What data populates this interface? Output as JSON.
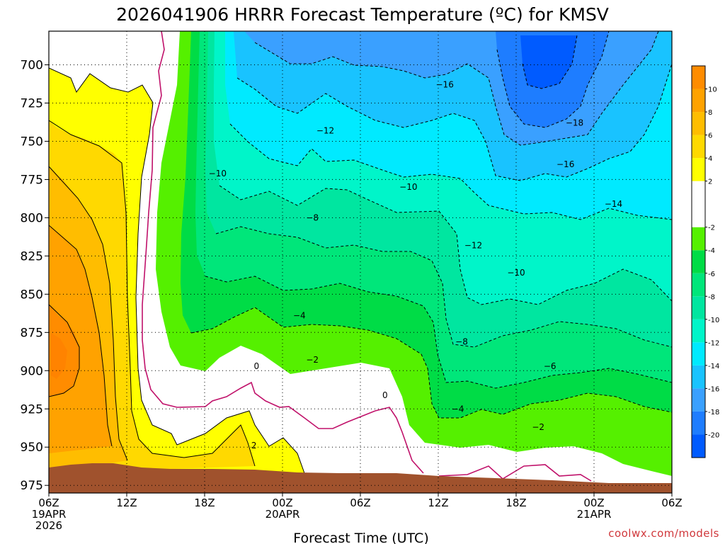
{
  "chart_data": {
    "type": "heatmap",
    "title": "2026041906 HRRR Forecast Temperature (ºC) for KMSV",
    "xlabel": "Forecast Time (UTC)",
    "credit": "coolwx.com/models",
    "x_ticks": [
      {
        "hour": 0,
        "lines": [
          "06Z",
          "19APR",
          "2026"
        ]
      },
      {
        "hour": 6,
        "lines": [
          "12Z"
        ]
      },
      {
        "hour": 12,
        "lines": [
          "18Z"
        ]
      },
      {
        "hour": 18,
        "lines": [
          "00Z",
          "20APR"
        ]
      },
      {
        "hour": 24,
        "lines": [
          "06Z"
        ]
      },
      {
        "hour": 30,
        "lines": [
          "12Z"
        ]
      },
      {
        "hour": 36,
        "lines": [
          "18Z"
        ]
      },
      {
        "hour": 42,
        "lines": [
          "00Z",
          "21APR"
        ]
      },
      {
        "hour": 48,
        "lines": [
          "06Z"
        ]
      }
    ],
    "xlim": [
      0,
      48
    ],
    "y_ticks": [
      "700",
      "725",
      "750",
      "775",
      "800",
      "825",
      "850",
      "875",
      "900",
      "925",
      "950",
      "975"
    ],
    "ylim": [
      980,
      678
    ],
    "grid": true,
    "colorbar": {
      "levels": [
        -22,
        -20,
        -18,
        -16,
        -14,
        -12,
        -10,
        -8,
        -6,
        -4,
        -2,
        2,
        4,
        6,
        8,
        10,
        12
      ],
      "tick_labels": [
        "-20",
        "-18",
        "-16",
        "-14",
        "-12",
        "-10",
        "-8",
        "-6",
        "-4",
        "-2",
        "2",
        "4",
        "6",
        "8",
        "10"
      ],
      "colors": [
        "#005bff",
        "#1e7dff",
        "#3aa0ff",
        "#19c3ff",
        "#00eaff",
        "#00f5c9",
        "#00e6a0",
        "#00e67a",
        "#00dc46",
        "#55f000",
        "#ffffff",
        "#ffff00",
        "#ffd900",
        "#ffbd00",
        "#ffa200",
        "#ff8c00"
      ]
    },
    "contour_labels": [
      {
        "hour": 30.5,
        "p": 713,
        "text": "−16"
      },
      {
        "hour": 40.5,
        "p": 738,
        "text": "−18"
      },
      {
        "hour": 21.3,
        "p": 743,
        "text": "−12"
      },
      {
        "hour": 39.8,
        "p": 765,
        "text": "−16"
      },
      {
        "hour": 13.0,
        "p": 771,
        "text": "−10"
      },
      {
        "hour": 27.7,
        "p": 780,
        "text": "−10"
      },
      {
        "hour": 43.5,
        "p": 791,
        "text": "−14"
      },
      {
        "hour": 20.3,
        "p": 800,
        "text": "−8"
      },
      {
        "hour": 32.7,
        "p": 818,
        "text": "−12"
      },
      {
        "hour": 36.0,
        "p": 836,
        "text": "−10"
      },
      {
        "hour": 19.3,
        "p": 864,
        "text": "−4"
      },
      {
        "hour": 31.8,
        "p": 881,
        "text": "−8"
      },
      {
        "hour": 20.3,
        "p": 893,
        "text": "−2"
      },
      {
        "hour": 16.0,
        "p": 897,
        "text": "0"
      },
      {
        "hour": 25.9,
        "p": 916,
        "text": "0"
      },
      {
        "hour": 38.6,
        "p": 897,
        "text": "−6"
      },
      {
        "hour": 31.5,
        "p": 925,
        "text": "−4"
      },
      {
        "hour": 37.7,
        "p": 937,
        "text": "−2"
      },
      {
        "hour": 15.8,
        "p": 949,
        "text": "2"
      }
    ]
  }
}
